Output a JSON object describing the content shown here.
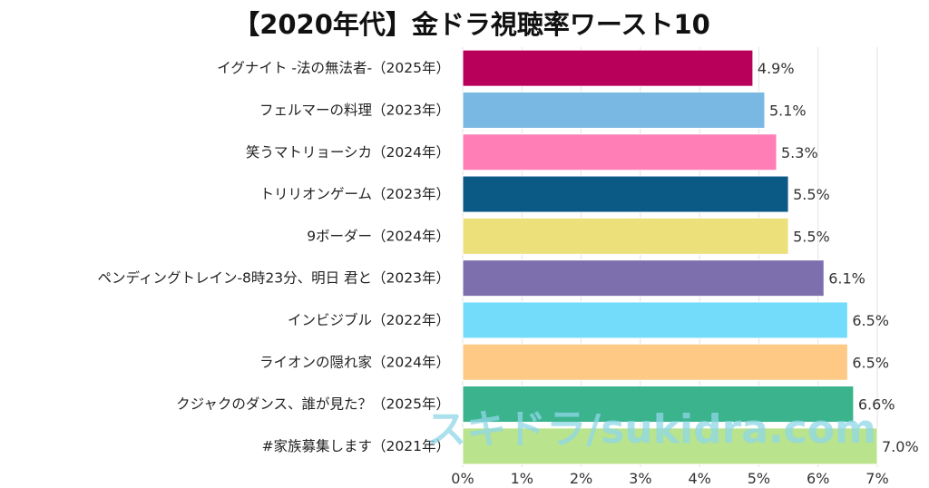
{
  "chart_data": {
    "type": "bar",
    "orientation": "horizontal",
    "title": "【2020年代】金ドラ視聴率ワースト10",
    "categories": [
      "イグナイト -法の無法者-（2025年）",
      "フェルマーの料理（2023年）",
      "笑うマトリョーシカ（2024年）",
      "トリリオンゲーム（2023年）",
      "9ボーダー（2024年）",
      "ペンディングトレイン-8時23分、明日 君と（2023年）",
      "インビジブル（2022年）",
      "ライオンの隠れ家（2024年）",
      "クジャクのダンス、誰が見た？（2025年）",
      "#家族募集します（2021年）"
    ],
    "values": [
      4.9,
      5.1,
      5.3,
      5.5,
      5.5,
      6.1,
      6.5,
      6.5,
      6.6,
      7.0
    ],
    "value_labels": [
      "4.9%",
      "5.1%",
      "5.3%",
      "5.5%",
      "5.5%",
      "6.1%",
      "6.5%",
      "6.5%",
      "6.6%",
      "7.0%"
    ],
    "colors": [
      "#b8005a",
      "#7ab8e4",
      "#ff7eb6",
      "#0b5a86",
      "#ebe07a",
      "#7d6fae",
      "#73dcfa",
      "#fdc985",
      "#3bb38d",
      "#b9e38c"
    ],
    "xlim": [
      0,
      7
    ],
    "xticks": [
      "0%",
      "1%",
      "2%",
      "3%",
      "4%",
      "5%",
      "6%",
      "7%"
    ],
    "grid": true,
    "xlabel": "",
    "ylabel": ""
  },
  "watermark": "スキドラ/sukidra.com"
}
